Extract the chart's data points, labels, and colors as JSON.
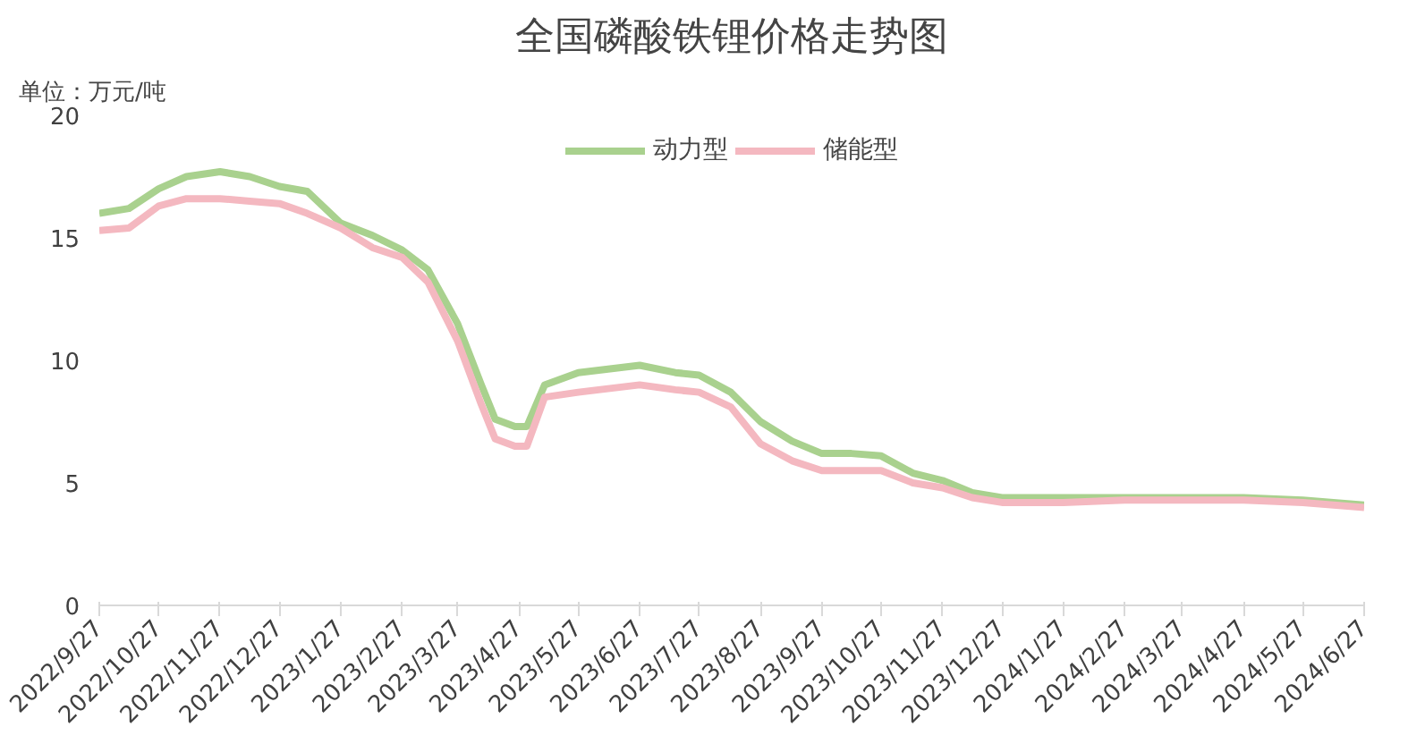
{
  "chart_data": {
    "type": "line",
    "title": "全国磷酸铁锂价格走势图",
    "ylabel": "单位：万元/吨",
    "x": [
      "2022-09-27",
      "2022-10-12",
      "2022-10-27",
      "2022-11-10",
      "2022-11-27",
      "2022-12-12",
      "2022-12-27",
      "2023-01-10",
      "2023-01-27",
      "2023-02-12",
      "2023-02-27",
      "2023-03-12",
      "2023-03-27",
      "2023-04-08",
      "2023-04-15",
      "2023-04-25",
      "2023-05-01",
      "2023-05-10",
      "2023-05-27",
      "2023-06-27",
      "2023-07-15",
      "2023-07-27",
      "2023-08-12",
      "2023-08-27",
      "2023-09-12",
      "2023-09-27",
      "2023-10-12",
      "2023-10-27",
      "2023-11-12",
      "2023-11-27",
      "2023-12-12",
      "2023-12-27",
      "2024-01-27",
      "2024-02-27",
      "2024-03-27",
      "2024-04-27",
      "2024-05-27",
      "2024-06-27"
    ],
    "series": [
      {
        "name": "动力型",
        "color": "#a9d18e",
        "values": [
          16.0,
          16.2,
          17.0,
          17.5,
          17.7,
          17.5,
          17.1,
          16.9,
          15.6,
          15.1,
          14.5,
          13.7,
          11.5,
          9.0,
          7.6,
          7.3,
          7.3,
          9.0,
          9.5,
          9.8,
          9.5,
          9.4,
          8.7,
          7.5,
          6.7,
          6.2,
          6.2,
          6.1,
          5.4,
          5.1,
          4.6,
          4.4,
          4.4,
          4.4,
          4.4,
          4.4,
          4.3,
          4.1
        ]
      },
      {
        "name": "储能型",
        "color": "#f4b8c0",
        "values": [
          15.3,
          15.4,
          16.3,
          16.6,
          16.6,
          16.5,
          16.4,
          16.0,
          15.4,
          14.6,
          14.2,
          13.2,
          10.8,
          8.2,
          6.8,
          6.5,
          6.5,
          8.5,
          8.7,
          9.0,
          8.8,
          8.7,
          8.1,
          6.6,
          5.9,
          5.5,
          5.5,
          5.5,
          5.0,
          4.8,
          4.4,
          4.2,
          4.2,
          4.3,
          4.3,
          4.3,
          4.2,
          4.0
        ]
      }
    ],
    "xlim": [
      "2022-09-27",
      "2024-06-27"
    ],
    "xticks": [
      {
        "value": "2022-09-27",
        "label": "2022/9/27"
      },
      {
        "value": "2022-10-27",
        "label": "2022/10/27"
      },
      {
        "value": "2022-11-27",
        "label": "2022/11/27"
      },
      {
        "value": "2022-12-27",
        "label": "2022/12/27"
      },
      {
        "value": "2023-01-27",
        "label": "2023/1/27"
      },
      {
        "value": "2023-02-27",
        "label": "2023/2/27"
      },
      {
        "value": "2023-03-27",
        "label": "2023/3/27"
      },
      {
        "value": "2023-04-27",
        "label": "2023/4/27"
      },
      {
        "value": "2023-05-27",
        "label": "2023/5/27"
      },
      {
        "value": "2023-06-27",
        "label": "2023/6/27"
      },
      {
        "value": "2023-07-27",
        "label": "2023/7/27"
      },
      {
        "value": "2023-08-27",
        "label": "2023/8/27"
      },
      {
        "value": "2023-09-27",
        "label": "2023/9/27"
      },
      {
        "value": "2023-10-27",
        "label": "2023/10/27"
      },
      {
        "value": "2023-11-27",
        "label": "2023/11/27"
      },
      {
        "value": "2023-12-27",
        "label": "2023/12/27"
      },
      {
        "value": "2024-01-27",
        "label": "2024/1/27"
      },
      {
        "value": "2024-02-27",
        "label": "2024/2/27"
      },
      {
        "value": "2024-03-27",
        "label": "2024/3/27"
      },
      {
        "value": "2024-04-27",
        "label": "2024/4/27"
      },
      {
        "value": "2024-05-27",
        "label": "2024/5/27"
      },
      {
        "value": "2024-06-27",
        "label": "2024/6/27"
      }
    ],
    "ylim": [
      0,
      20
    ],
    "yticks": [
      0,
      5,
      10,
      15,
      20
    ],
    "grid": false,
    "legend": "top",
    "marker": "none",
    "line_style": "solid"
  }
}
